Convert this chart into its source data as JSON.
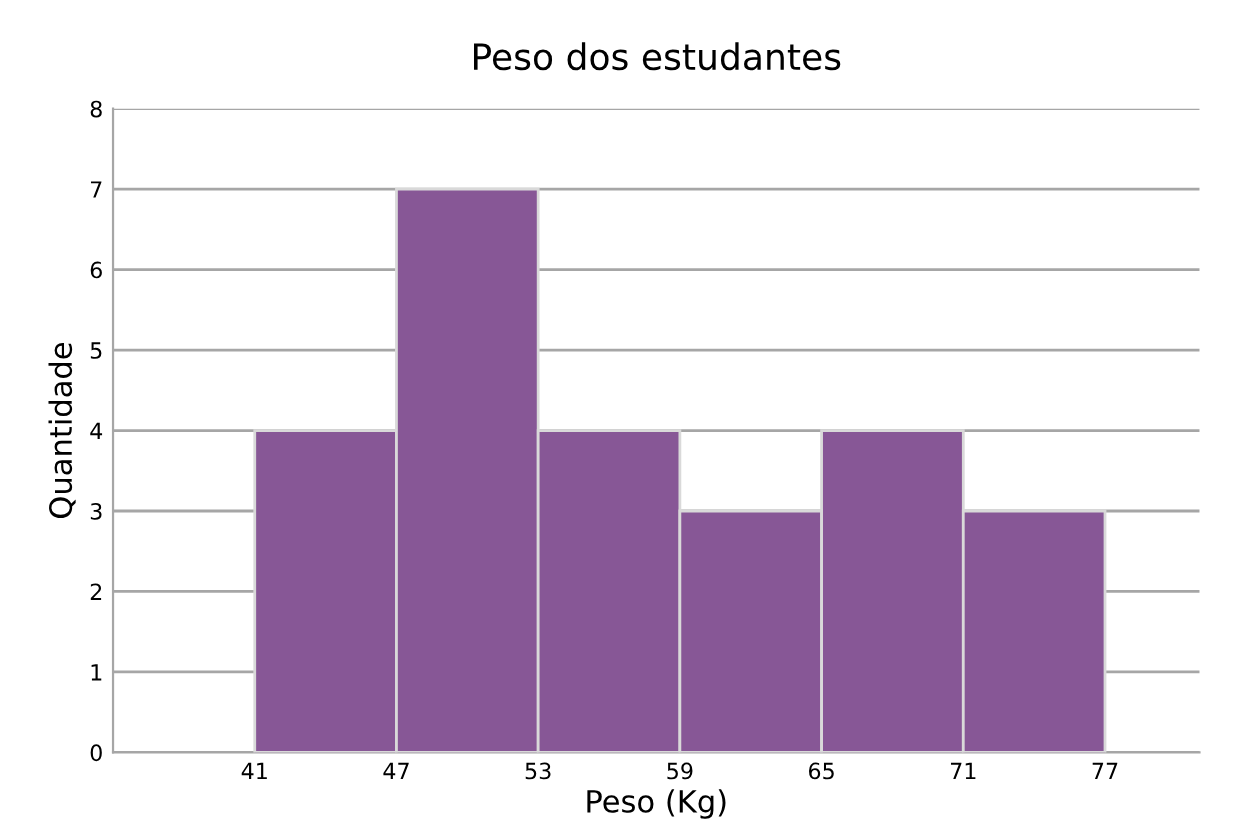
{
  "chart_data": {
    "type": "histogram",
    "title": "Peso dos estudantes",
    "xlabel": "Peso (Kg)",
    "ylabel": "Quantidade",
    "bins": [
      41,
      47,
      53,
      59,
      65,
      71,
      77
    ],
    "values": [
      4,
      7,
      4,
      3,
      4,
      3
    ],
    "color": "#875796",
    "xlim": [
      35,
      81
    ],
    "xticks": [
      41,
      47,
      53,
      59,
      65,
      71,
      77
    ],
    "ylim": [
      0,
      8
    ],
    "yticks": [
      0,
      1,
      2,
      3,
      4,
      5,
      6,
      7,
      8
    ],
    "grid": "y",
    "legend": false
  }
}
